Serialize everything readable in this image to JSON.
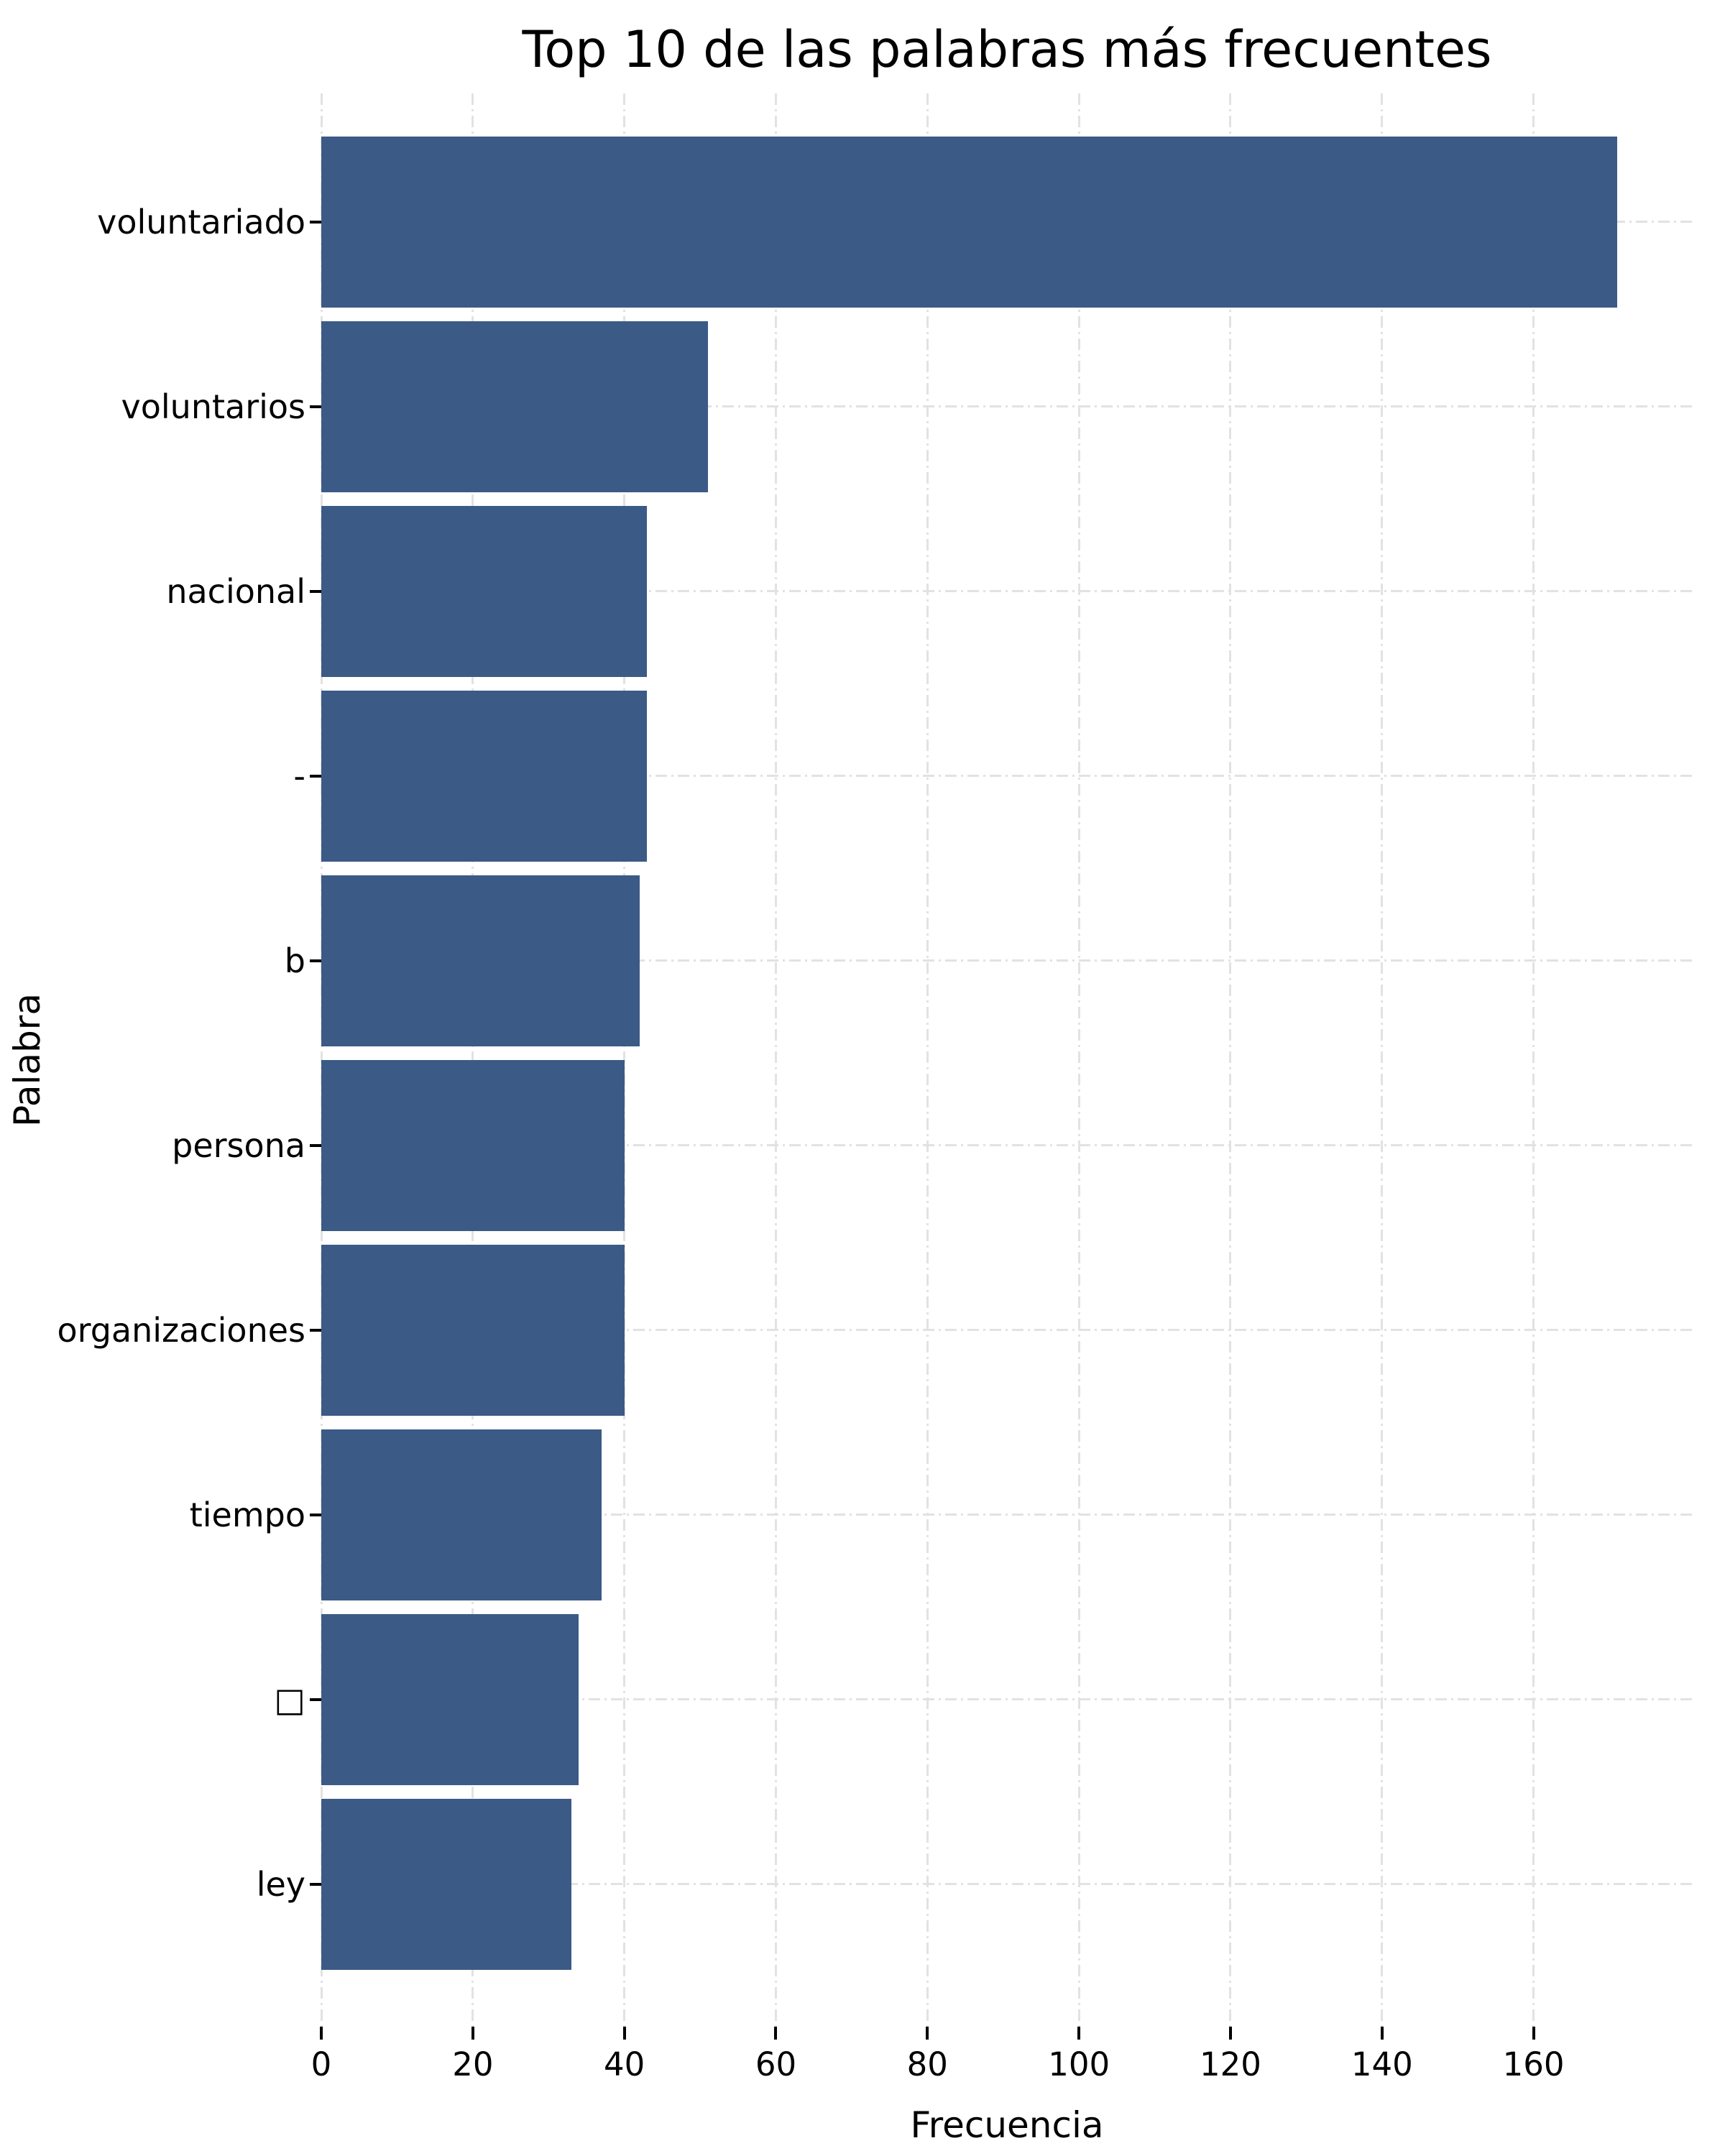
{
  "chart_data": {
    "type": "bar",
    "orientation": "horizontal",
    "title": "Top 10 de las palabras más frecuentes",
    "xlabel": "Frecuencia",
    "ylabel": "Palabra",
    "categories": [
      "voluntariado",
      "voluntarios",
      "nacional",
      "-",
      "b",
      "persona",
      "organizaciones",
      "tiempo",
      "□",
      "ley"
    ],
    "values": [
      171,
      51,
      43,
      43,
      42,
      40,
      40,
      37,
      34,
      33
    ],
    "xlim": [
      0,
      181
    ],
    "xticks": [
      0,
      20,
      40,
      60,
      80,
      100,
      120,
      140,
      160
    ],
    "bar_color": "#3B5A86",
    "grid": true,
    "grid_color": "#E2E2E2",
    "grid_style": "dashdot",
    "background": "#FFFFFF",
    "legend": null
  }
}
